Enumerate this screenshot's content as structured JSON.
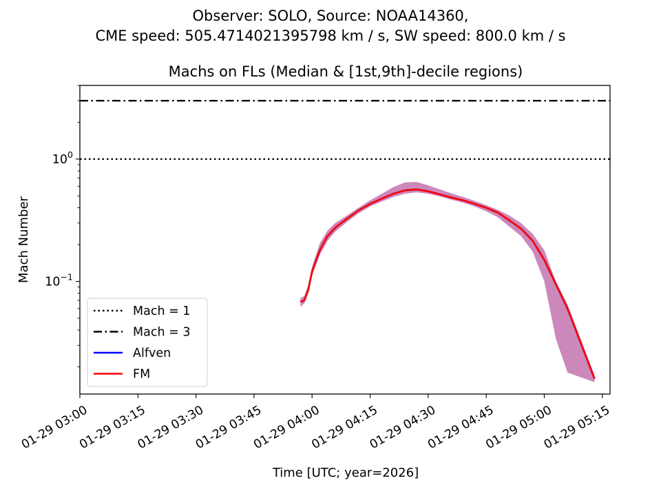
{
  "suptitle_line1": "Observer: SOLO, Source: NOAA14360,",
  "suptitle_line2": "CME speed: 505.4714021395798 km / s, SW speed: 800.0 km / s",
  "chart_data": {
    "type": "line",
    "title": "Machs on FLs (Median & [1st,9th]-decile regions)",
    "xlabel": "Time [UTC; year=2026]",
    "ylabel": "Mach Number",
    "yscale": "log",
    "ylim": [
      0.012,
      4.0
    ],
    "xlim_minutes": [
      0,
      137
    ],
    "x_ticks": [
      {
        "t": 0,
        "label": "01-29 03:00"
      },
      {
        "t": 15,
        "label": "01-29 03:15"
      },
      {
        "t": 30,
        "label": "01-29 03:30"
      },
      {
        "t": 45,
        "label": "01-29 03:45"
      },
      {
        "t": 60,
        "label": "01-29 04:00"
      },
      {
        "t": 75,
        "label": "01-29 04:15"
      },
      {
        "t": 90,
        "label": "01-29 04:30"
      },
      {
        "t": 105,
        "label": "01-29 04:45"
      },
      {
        "t": 120,
        "label": "01-29 05:00"
      },
      {
        "t": 135,
        "label": "01-29 05:15"
      }
    ],
    "y_major_ticks": [
      {
        "v": 0.1,
        "base": "10",
        "exp": "−1"
      },
      {
        "v": 1.0,
        "base": "10",
        "exp": "0"
      }
    ],
    "reference_lines": [
      {
        "name": "Mach = 1",
        "value": 1.0,
        "style": "dotted",
        "color": "#000000"
      },
      {
        "name": "Mach = 3",
        "value": 3.0,
        "style": "dashdot",
        "color": "#000000"
      }
    ],
    "series": [
      {
        "name": "Alfven",
        "color": "#0000ff",
        "t": [
          57,
          58,
          59,
          60,
          62,
          64,
          66,
          69,
          72,
          75,
          78,
          81,
          84,
          87,
          90,
          93,
          96,
          99,
          102,
          105,
          108,
          111,
          114,
          117,
          120,
          123,
          126,
          133
        ],
        "values": [
          0.068,
          0.07,
          0.085,
          0.12,
          0.18,
          0.235,
          0.275,
          0.325,
          0.38,
          0.43,
          0.475,
          0.52,
          0.555,
          0.565,
          0.545,
          0.515,
          0.485,
          0.46,
          0.43,
          0.4,
          0.365,
          0.315,
          0.27,
          0.215,
          0.15,
          0.095,
          0.06,
          0.016
        ]
      },
      {
        "name": "FM",
        "color": "#ff0000",
        "t": [
          57,
          58,
          59,
          60,
          62,
          64,
          66,
          69,
          72,
          75,
          78,
          81,
          84,
          87,
          90,
          93,
          96,
          99,
          102,
          105,
          108,
          111,
          114,
          117,
          120,
          123,
          126,
          133
        ],
        "values": [
          0.068,
          0.07,
          0.085,
          0.12,
          0.18,
          0.235,
          0.275,
          0.325,
          0.38,
          0.43,
          0.475,
          0.52,
          0.555,
          0.565,
          0.545,
          0.515,
          0.485,
          0.46,
          0.43,
          0.4,
          0.365,
          0.315,
          0.27,
          0.215,
          0.15,
          0.095,
          0.06,
          0.016
        ]
      }
    ],
    "band": {
      "color": "#cc88bb",
      "t": [
        57,
        58,
        59,
        60,
        62,
        64,
        66,
        69,
        72,
        75,
        78,
        81,
        84,
        87,
        90,
        93,
        96,
        99,
        102,
        105,
        108,
        111,
        114,
        117,
        120,
        123,
        126,
        133
      ],
      "lower": [
        0.062,
        0.066,
        0.08,
        0.112,
        0.165,
        0.215,
        0.255,
        0.305,
        0.36,
        0.41,
        0.45,
        0.49,
        0.52,
        0.535,
        0.52,
        0.495,
        0.465,
        0.44,
        0.41,
        0.375,
        0.335,
        0.28,
        0.235,
        0.175,
        0.1,
        0.034,
        0.018,
        0.015
      ],
      "upper": [
        0.073,
        0.076,
        0.093,
        0.132,
        0.205,
        0.26,
        0.3,
        0.345,
        0.4,
        0.46,
        0.52,
        0.59,
        0.645,
        0.65,
        0.61,
        0.565,
        0.525,
        0.49,
        0.455,
        0.42,
        0.385,
        0.345,
        0.3,
        0.245,
        0.18,
        0.1,
        0.065,
        0.017
      ]
    },
    "legend": {
      "position": "lower-left",
      "entries": [
        {
          "label": "Mach = 1",
          "style": "dotted",
          "color": "#000000"
        },
        {
          "label": "Mach = 3",
          "style": "dashdot",
          "color": "#000000"
        },
        {
          "label": "Alfven",
          "style": "solid",
          "color": "#0000ff"
        },
        {
          "label": "FM",
          "style": "solid",
          "color": "#ff0000"
        }
      ]
    }
  }
}
